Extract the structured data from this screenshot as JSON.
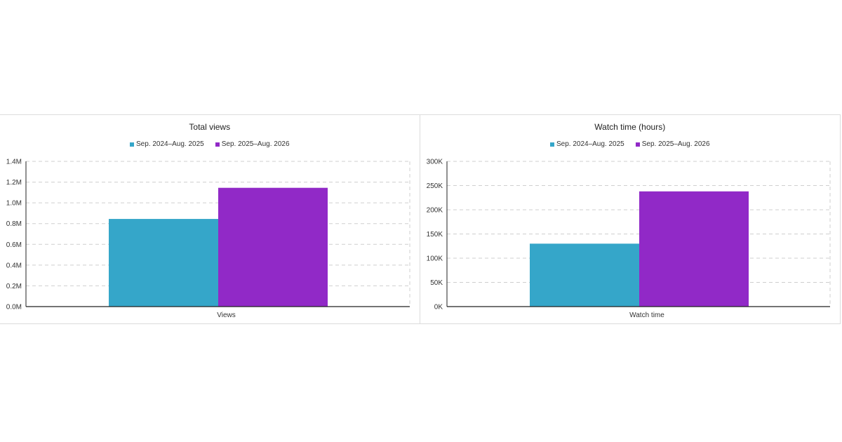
{
  "chart_data": [
    {
      "type": "bar",
      "title": "Total views",
      "xlabel": "Views",
      "ylabel": "",
      "categories": [
        "Views"
      ],
      "ylim": [
        0,
        1400000
      ],
      "yticks": [
        "0.0M",
        "0.2M",
        "0.4M",
        "0.6M",
        "0.8M",
        "1.0M",
        "1.2M",
        "1.4M"
      ],
      "ytick_values": [
        0,
        200000,
        400000,
        600000,
        800000,
        1000000,
        1200000,
        1400000
      ],
      "grid": true,
      "legend_position": "top-center",
      "series": [
        {
          "name": "Sep. 2024–Aug. 2025",
          "values": [
            845000
          ],
          "color": "#35a6c9"
        },
        {
          "name": "Sep. 2025–Aug. 2026",
          "values": [
            1145000
          ],
          "color": "#9129c7"
        }
      ]
    },
    {
      "type": "bar",
      "title": "Watch time (hours)",
      "xlabel": "Watch time",
      "ylabel": "",
      "categories": [
        "Watch time"
      ],
      "ylim": [
        0,
        300000
      ],
      "yticks": [
        "0K",
        "50K",
        "100K",
        "150K",
        "200K",
        "250K",
        "300K"
      ],
      "ytick_values": [
        0,
        50000,
        100000,
        150000,
        200000,
        250000,
        300000
      ],
      "grid": true,
      "legend_position": "top-center",
      "series": [
        {
          "name": "Sep. 2024–Aug. 2025",
          "values": [
            130000
          ],
          "color": "#35a6c9"
        },
        {
          "name": "Sep. 2025–Aug. 2026",
          "values": [
            238000
          ],
          "color": "#9129c7"
        }
      ]
    }
  ]
}
